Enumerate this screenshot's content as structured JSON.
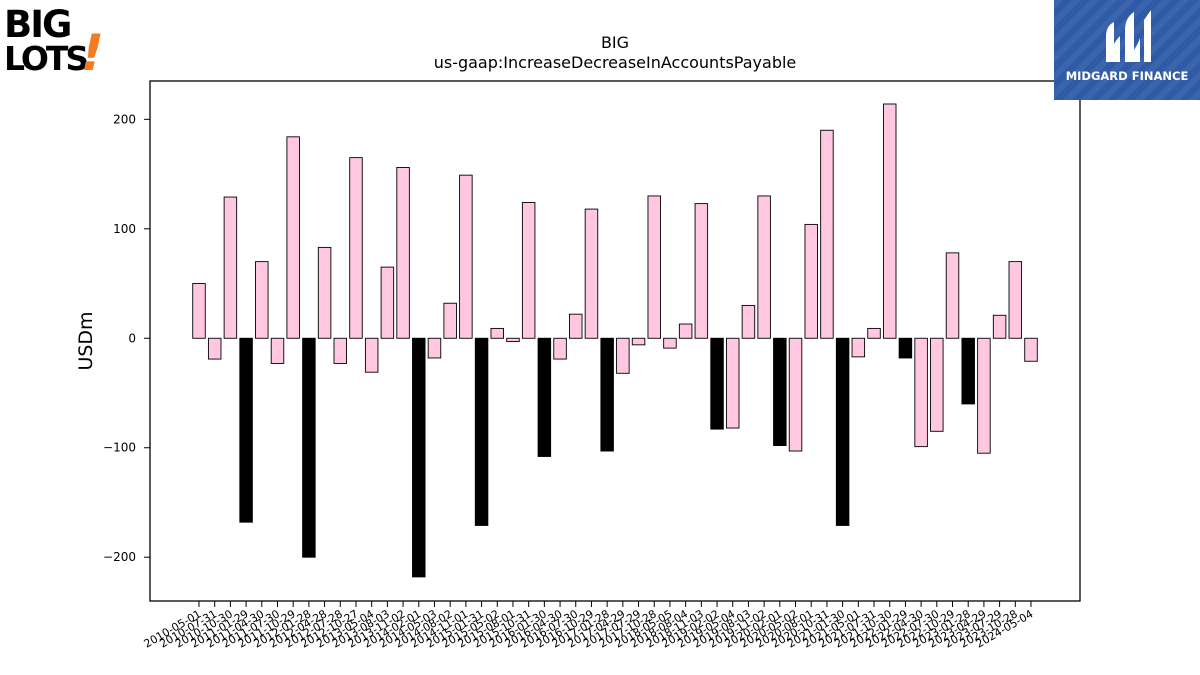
{
  "logos": {
    "left": {
      "line1": "BIG",
      "line2": "LOTS",
      "mark": "!",
      "accent_color": "#f47b20"
    },
    "right": {
      "text": "MIDGARD FINANCE",
      "bg_color": "#2f5aa8",
      "icon": "midgard-m-icon"
    }
  },
  "chart_data": {
    "type": "bar",
    "title": "BIG",
    "subtitle": "us-gaap:IncreaseDecreaseInAccountsPayable",
    "xlabel": "",
    "ylabel": "USDm",
    "ylim": [
      -240,
      235
    ],
    "yticks": [
      -200,
      -100,
      0,
      100,
      200
    ],
    "grid": false,
    "legend": "none",
    "colors": {
      "positive_quarter": "#ffc8e0",
      "annual_q4": "#000000",
      "edge": "#000000"
    },
    "categories": [
      "2010-05-01",
      "2010-07-31",
      "2010-10-30",
      "2011-01-29",
      "2011-04-30",
      "2011-07-30",
      "2011-10-29",
      "2012-01-28",
      "2012-04-28",
      "2012-07-28",
      "2012-10-27",
      "2013-05-04",
      "2013-08-03",
      "2013-11-02",
      "2014-02-01",
      "2014-05-03",
      "2014-08-02",
      "2014-11-01",
      "2015-01-31",
      "2015-05-02",
      "2015-08-01",
      "2015-10-31",
      "2016-01-30",
      "2016-04-30",
      "2016-07-30",
      "2016-10-29",
      "2017-01-28",
      "2017-04-29",
      "2017-07-29",
      "2017-10-28",
      "2018-05-05",
      "2018-08-04",
      "2018-11-03",
      "2019-02-02",
      "2019-05-04",
      "2019-08-03",
      "2019-11-02",
      "2020-02-01",
      "2020-05-02",
      "2020-08-01",
      "2020-10-31",
      "2021-01-30",
      "2021-05-01",
      "2021-07-31",
      "2021-10-30",
      "2022-01-29",
      "2022-04-30",
      "2022-07-30",
      "2022-10-29",
      "2023-01-28",
      "2023-04-29",
      "2023-07-29",
      "2023-10-28",
      "2024-05-04"
    ],
    "values": [
      50,
      -19,
      129,
      -168,
      70,
      -23,
      184,
      -200,
      83,
      -23,
      165,
      -31,
      65,
      156,
      -218,
      -18,
      32,
      149,
      -171,
      9,
      -3,
      124,
      -108,
      -19,
      22,
      118,
      -103,
      -32,
      -6,
      130,
      -9,
      13,
      123,
      -83,
      -82,
      30,
      130,
      -98,
      -103,
      104,
      190,
      -171,
      -17,
      9,
      214,
      -18,
      -99,
      -85,
      78,
      -60,
      -105,
      21,
      70,
      -21
    ],
    "is_black": [
      false,
      false,
      false,
      true,
      false,
      false,
      false,
      true,
      false,
      false,
      false,
      false,
      false,
      false,
      true,
      false,
      false,
      false,
      true,
      false,
      false,
      false,
      true,
      false,
      false,
      false,
      true,
      false,
      false,
      false,
      false,
      false,
      false,
      true,
      false,
      false,
      false,
      true,
      false,
      false,
      false,
      true,
      false,
      false,
      false,
      true,
      false,
      false,
      false,
      true,
      false,
      false,
      false,
      false
    ]
  }
}
